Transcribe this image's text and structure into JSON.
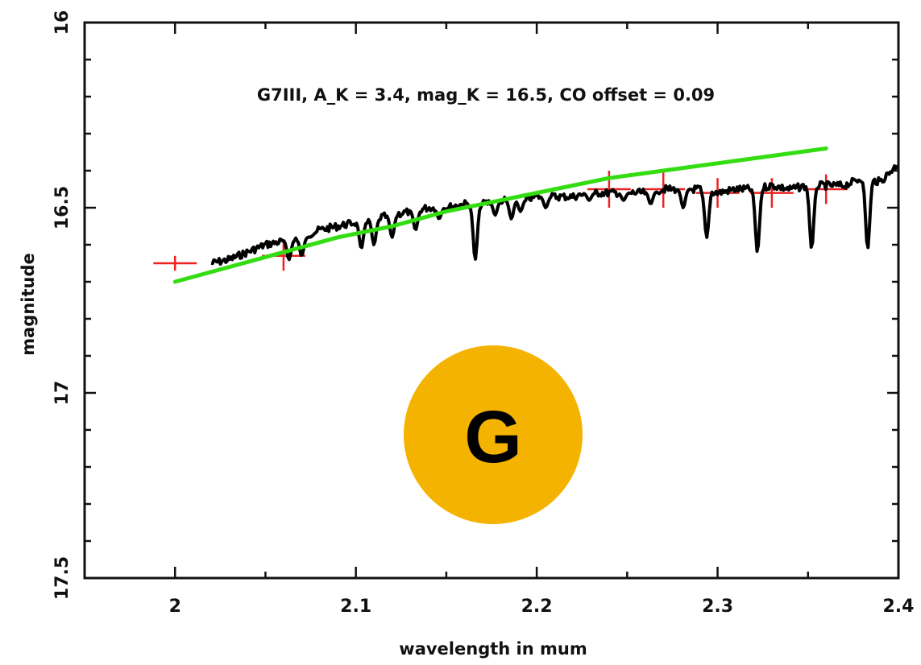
{
  "chart_data": {
    "type": "line",
    "title": "",
    "xlabel": "wavelength in mum",
    "ylabel": "magnitude",
    "xlim": [
      1.95,
      2.4
    ],
    "ylim": [
      17.5,
      16.0
    ],
    "y_inverted": true,
    "grid": false,
    "x_ticks": [
      {
        "value": 2.0,
        "label": "2"
      },
      {
        "value": 2.1,
        "label": "2.1"
      },
      {
        "value": 2.2,
        "label": "2.2"
      },
      {
        "value": 2.3,
        "label": "2.3"
      },
      {
        "value": 2.4,
        "label": "2.4"
      }
    ],
    "y_ticks": [
      {
        "value": 16.0,
        "label": "16"
      },
      {
        "value": 16.5,
        "label": "16.5"
      },
      {
        "value": 17.0,
        "label": "17"
      },
      {
        "value": 17.5,
        "label": "17.5"
      }
    ],
    "annotation": "G7III, A_K = 3.4, mag_K = 16.5, CO offset = 0.09",
    "series": [
      {
        "kind": "spectrum",
        "color": "#000000",
        "x": [
          2.02,
          2.03,
          2.04,
          2.05,
          2.06,
          2.07,
          2.08,
          2.09,
          2.1,
          2.11,
          2.12,
          2.13,
          2.14,
          2.15,
          2.16,
          2.17,
          2.18,
          2.19,
          2.2,
          2.21,
          2.22,
          2.23,
          2.24,
          2.25,
          2.26,
          2.27,
          2.28,
          2.29,
          2.3,
          2.31,
          2.32,
          2.33,
          2.34,
          2.35,
          2.36,
          2.37,
          2.38,
          2.39,
          2.4
        ],
        "y": [
          16.65,
          16.64,
          16.62,
          16.6,
          16.59,
          16.58,
          16.56,
          16.55,
          16.54,
          16.53,
          16.52,
          16.51,
          16.5,
          16.5,
          16.49,
          16.49,
          16.48,
          16.48,
          16.47,
          16.47,
          16.47,
          16.46,
          16.46,
          16.46,
          16.46,
          16.45,
          16.45,
          16.45,
          16.46,
          16.45,
          16.45,
          16.44,
          16.45,
          16.44,
          16.44,
          16.44,
          16.42,
          16.43,
          16.38
        ],
        "absorption_lines": [
          {
            "x": 2.063,
            "y": 16.64
          },
          {
            "x": 2.07,
            "y": 16.63
          },
          {
            "x": 2.103,
            "y": 16.61
          },
          {
            "x": 2.11,
            "y": 16.6
          },
          {
            "x": 2.12,
            "y": 16.58
          },
          {
            "x": 2.133,
            "y": 16.56
          },
          {
            "x": 2.146,
            "y": 16.53
          },
          {
            "x": 2.166,
            "y": 16.64
          },
          {
            "x": 2.177,
            "y": 16.52
          },
          {
            "x": 2.186,
            "y": 16.53
          },
          {
            "x": 2.191,
            "y": 16.51
          },
          {
            "x": 2.205,
            "y": 16.5
          },
          {
            "x": 2.229,
            "y": 16.48
          },
          {
            "x": 2.248,
            "y": 16.48
          },
          {
            "x": 2.263,
            "y": 16.49
          },
          {
            "x": 2.281,
            "y": 16.5
          },
          {
            "x": 2.294,
            "y": 16.58
          },
          {
            "x": 2.322,
            "y": 16.62
          },
          {
            "x": 2.352,
            "y": 16.61
          },
          {
            "x": 2.383,
            "y": 16.61
          }
        ]
      },
      {
        "kind": "model",
        "color": "#33dd11",
        "x": [
          2.0,
          2.03,
          2.06,
          2.09,
          2.12,
          2.15,
          2.18,
          2.21,
          2.24,
          2.27,
          2.3,
          2.33,
          2.36
        ],
        "y": [
          16.7,
          16.66,
          16.62,
          16.58,
          16.55,
          16.51,
          16.48,
          16.45,
          16.42,
          16.4,
          16.38,
          16.36,
          16.34
        ]
      },
      {
        "kind": "photometry",
        "color": "#ee2222",
        "x": [
          2.0,
          2.06,
          2.24,
          2.27,
          2.3,
          2.33,
          2.36
        ],
        "y": [
          16.65,
          16.63,
          16.45,
          16.45,
          16.46,
          16.46,
          16.45
        ],
        "x_err": [
          0.012,
          0.012,
          0.012,
          0.012,
          0.012,
          0.012,
          0.012
        ],
        "y_err": [
          0.02,
          0.04,
          0.05,
          0.05,
          0.04,
          0.04,
          0.04
        ]
      }
    ]
  },
  "badge": {
    "letter": "G",
    "color": "#f5b301"
  }
}
